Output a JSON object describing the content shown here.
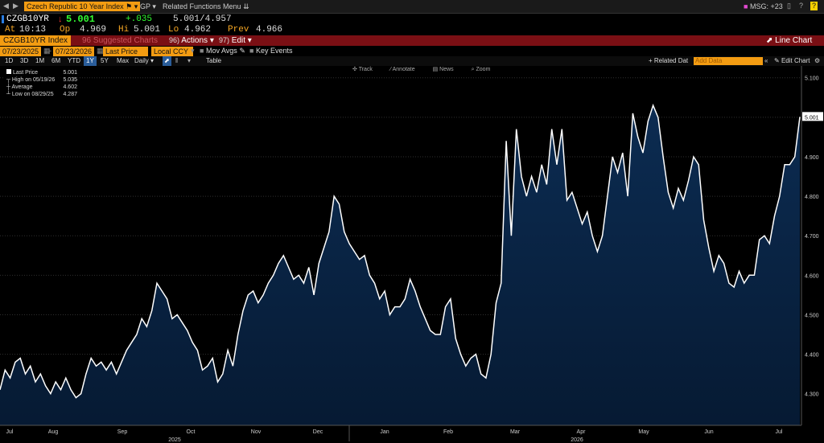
{
  "topbar": {
    "security": "Czech Republic 10 Year Index",
    "gp": "GP",
    "related": "Related Functions Menu",
    "msg": "MSG: +23"
  },
  "quote": {
    "ticker": "CZGB10YR",
    "arrow": "↓",
    "last": "5.001",
    "change": "+.035",
    "bidask": "5.001/4.957",
    "at_label": "At",
    "at": "10:13",
    "op_label": "Op",
    "op": "4.969",
    "hi_label": "Hi",
    "hi": "5.001",
    "lo_label": "Lo",
    "lo": "4.962",
    "prev_label": "Prev",
    "prev": "4.966"
  },
  "actionbar": {
    "index": "CZGB10YR Index",
    "suggested": "96 Suggested Charts",
    "actions_num": "96)",
    "actions": "Actions",
    "edit_num": "97)",
    "edit": "Edit",
    "line_chart": "Line Chart"
  },
  "controls": {
    "date_from": "07/23/2025",
    "date_to": "07/23/2026",
    "field": "Last Price",
    "currency": "Local CCY",
    "mov_avgs": "Mov Avgs",
    "key_events": "Key Events"
  },
  "periods": {
    "p1": "1D",
    "p2": "3D",
    "p3": "1M",
    "p4": "6M",
    "p5": "YTD",
    "p6": "1Y",
    "p7": "5Y",
    "p8": "Max",
    "freq": "Daily",
    "table": "Table",
    "related_data": "+ Related Dat",
    "add_data": "Add Data",
    "edit_chart": "Edit Chart"
  },
  "toolbar": {
    "track": "Track",
    "annotate": "Annotate",
    "news": "News",
    "zoom": "Zoom"
  },
  "legend": {
    "last_price_label": "Last Price",
    "last_price": "5.001",
    "high_label": "High on 05/19/26",
    "high": "5.035",
    "avg_label": "Average",
    "avg": "4.602",
    "low_label": "Low on 08/29/25",
    "low": "4.287"
  },
  "colors": {
    "line": "#ffffff",
    "fill_top": "#0a2a4d",
    "fill_bottom": "#061a33",
    "accent": "#f39c12",
    "brand_red": "#7a0f14"
  },
  "chart_data": {
    "type": "area",
    "series": [
      {
        "values": [
          4.31,
          4.36,
          4.34,
          4.38,
          4.39,
          4.35,
          4.37,
          4.33,
          4.35,
          4.32,
          4.3,
          4.33,
          4.31,
          4.34,
          4.31,
          4.29,
          4.3,
          4.35,
          4.39,
          4.37,
          4.38,
          4.36,
          4.38,
          4.35,
          4.38,
          4.41,
          4.43,
          4.45,
          4.49,
          4.47,
          4.51,
          4.58,
          4.56,
          4.54,
          4.49,
          4.5,
          4.48,
          4.46,
          4.43,
          4.41,
          4.36,
          4.37,
          4.39,
          4.33,
          4.35,
          4.41,
          4.37,
          4.45,
          4.51,
          4.55,
          4.56,
          4.53,
          4.55,
          4.58,
          4.6,
          4.63,
          4.65,
          4.62,
          4.59,
          4.6,
          4.58,
          4.62,
          4.55,
          4.63,
          4.67,
          4.71,
          4.8,
          4.78,
          4.71,
          4.68,
          4.66,
          4.64,
          4.65,
          4.6,
          4.58,
          4.54,
          4.56,
          4.5,
          4.52,
          4.52,
          4.54,
          4.59,
          4.56,
          4.52,
          4.49,
          4.46,
          4.45,
          4.45,
          4.52,
          4.54,
          4.44,
          4.4,
          4.37,
          4.39,
          4.4,
          4.35,
          4.34,
          4.4,
          4.53,
          4.58,
          4.94,
          4.7,
          4.97,
          4.85,
          4.8,
          4.85,
          4.81,
          4.88,
          4.83,
          4.97,
          4.88,
          4.97,
          4.79,
          4.81,
          4.77,
          4.73,
          4.76,
          4.7,
          4.66,
          4.7,
          4.8,
          4.9,
          4.86,
          4.91,
          4.8,
          5.01,
          4.95,
          4.91,
          4.99,
          5.03,
          5.0,
          4.9,
          4.81,
          4.77,
          4.82,
          4.79,
          4.84,
          4.9,
          4.88,
          4.74,
          4.67,
          4.61,
          4.65,
          4.63,
          4.58,
          4.57,
          4.61,
          4.58,
          4.6,
          4.6,
          4.69,
          4.7,
          4.68,
          4.75,
          4.8,
          4.88,
          4.88,
          4.9,
          5.001
        ]
      }
    ],
    "x_ticks": [
      "Jul",
      "Aug",
      "Sep",
      "Oct",
      "Nov",
      "Dec",
      "Jan",
      "Feb",
      "Mar",
      "Apr",
      "May",
      "Jun",
      "Jul"
    ],
    "year_labels": [
      "2025",
      "2026"
    ],
    "y_ticks": [
      4.3,
      4.4,
      4.5,
      4.6,
      4.7,
      4.8,
      4.9,
      5.0,
      5.1
    ],
    "ylim": [
      4.22,
      5.13
    ],
    "last_value_label": "5.001",
    "grid": true
  }
}
